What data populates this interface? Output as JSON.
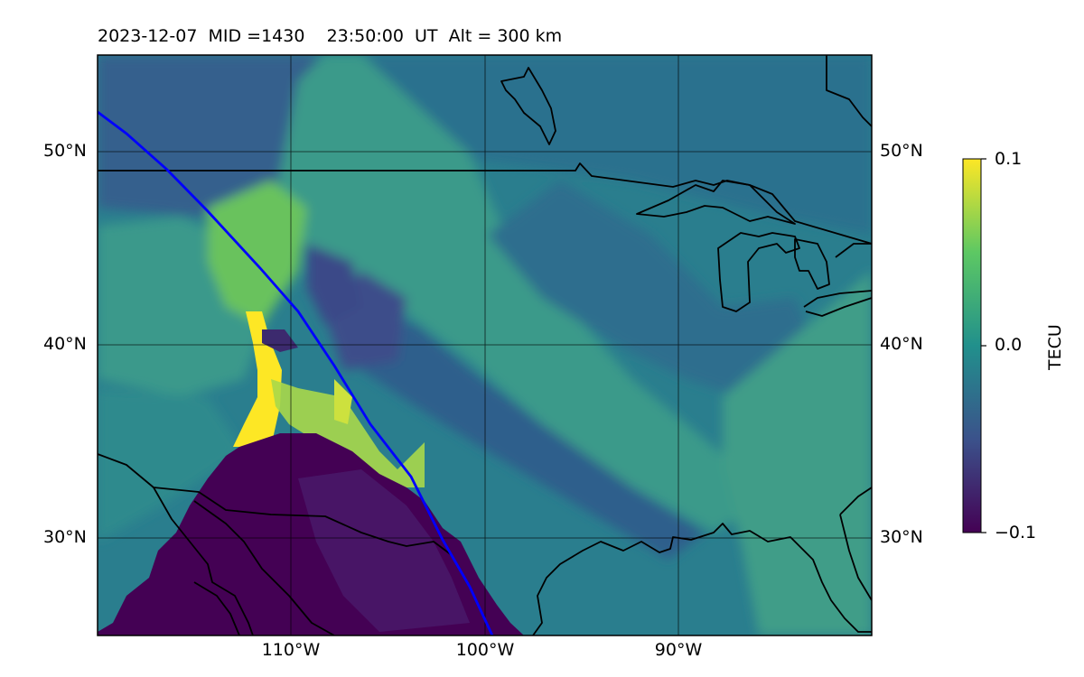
{
  "title": "2023-12-07  MID =1430    23:50:00  UT  Alt = 300 km",
  "map": {
    "lon_range": [
      -120,
      -80
    ],
    "lat_range": [
      25,
      55
    ],
    "lat_ticks": [
      "50°N",
      "40°N",
      "30°N"
    ],
    "lon_ticks": [
      "110°W",
      "100°W",
      "90°W"
    ],
    "grid": true,
    "track_color": "#0000ff",
    "coastline_color": "#000000"
  },
  "colorbar": {
    "label": "TECU",
    "min": -0.1,
    "max": 0.1,
    "ticks": [
      "0.1",
      "0.0",
      "−0.1"
    ],
    "colormap": "viridis",
    "colors": [
      "#440154",
      "#3b528b",
      "#21908c",
      "#5dc863",
      "#fde725"
    ]
  }
}
